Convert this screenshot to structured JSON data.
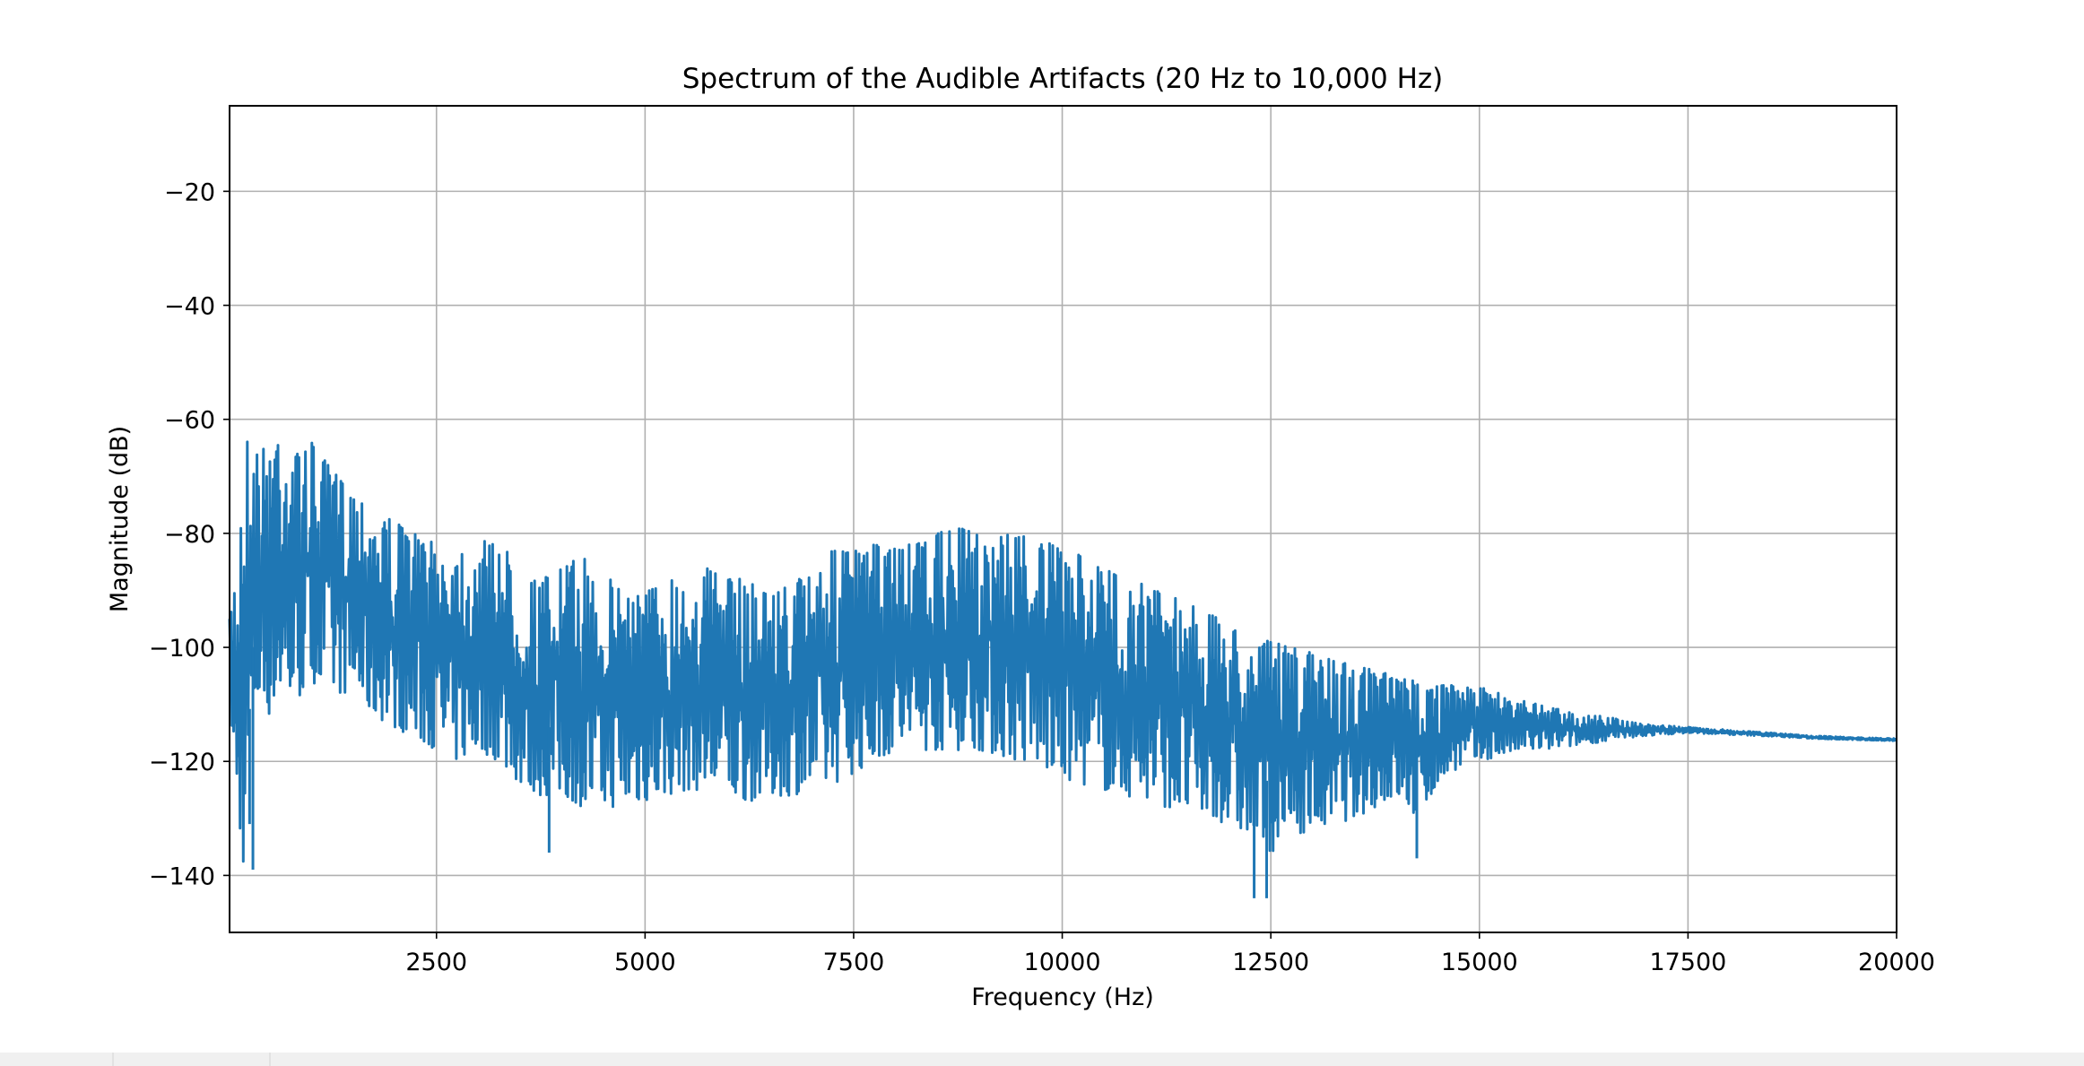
{
  "chart_data": {
    "type": "line",
    "title": "Spectrum of the Audible Artifacts (20 Hz to 10,000 Hz)",
    "xlabel": "Frequency (Hz)",
    "ylabel": "Magnitude (dB)",
    "xlim": [
      20,
      20000
    ],
    "ylim": [
      -150,
      -5
    ],
    "xticks": [
      2500,
      5000,
      7500,
      10000,
      12500,
      15000,
      17500,
      20000
    ],
    "xtick_labels": [
      "2500",
      "5000",
      "7500",
      "10000",
      "12500",
      "15000",
      "17500",
      "20000"
    ],
    "yticks": [
      -20,
      -40,
      -60,
      -80,
      -100,
      -120,
      -140
    ],
    "ytick_labels": [
      "−20",
      "−40",
      "−60",
      "−80",
      "−100",
      "−120",
      "−140"
    ],
    "grid": true,
    "legend": "none",
    "line_color": "#1f77b4",
    "series": [
      {
        "x": [
          20,
          100,
          200,
          300,
          400,
          500,
          600,
          800,
          1000,
          1250,
          1500,
          1750,
          2000,
          2250,
          2500,
          2750,
          3000,
          3250,
          3500,
          3750,
          4000,
          4250,
          4500,
          4750,
          5000,
          5250,
          5500,
          5750,
          6000,
          6250,
          6500,
          6750,
          7000,
          7250,
          7500,
          7750,
          8000,
          8250,
          8500,
          8750,
          9000,
          9250,
          9500,
          9750,
          10000,
          10250,
          10500,
          10750,
          11000,
          11250,
          11500,
          11750,
          12000,
          12250,
          12500,
          12750,
          13000,
          13250,
          13500,
          13750,
          14000,
          14250,
          14500,
          14750,
          15000,
          15250,
          15500,
          15750,
          16000,
          16250,
          16500,
          16750,
          17000,
          17500,
          18000,
          18500,
          19000,
          19500,
          20000
        ],
        "upper": [
          -95,
          -84,
          -62,
          -64,
          -66,
          -62,
          -60,
          -66,
          -64,
          -69,
          -72,
          -75,
          -78,
          -80,
          -82,
          -82,
          -82,
          -80,
          -88,
          -88,
          -86,
          -84,
          -88,
          -88,
          -90,
          -88,
          -87,
          -86,
          -88,
          -88,
          -90,
          -89,
          -86,
          -83,
          -83,
          -82,
          -82,
          -82,
          -80,
          -79,
          -80,
          -80,
          -80,
          -81,
          -83,
          -84,
          -86,
          -88,
          -89,
          -90,
          -92,
          -94,
          -96,
          -98,
          -99,
          -100,
          -101,
          -102,
          -103,
          -104,
          -105,
          -106,
          -106,
          -107,
          -107,
          -108,
          -109,
          -110,
          -111,
          -112,
          -112,
          -113,
          -113.5,
          -114,
          -114.5,
          -115,
          -115.5,
          -115.8,
          -116
        ],
        "lower": [
          -105,
          -132,
          -139,
          -112,
          -110,
          -112,
          -108,
          -110,
          -106,
          -108,
          -108,
          -112,
          -114,
          -116,
          -118,
          -120,
          -118,
          -120,
          -124,
          -126,
          -126,
          -128,
          -128,
          -128,
          -127,
          -126,
          -125,
          -125,
          -126,
          -127,
          -126,
          -126,
          -125,
          -124,
          -122,
          -120,
          -118,
          -118,
          -118,
          -118,
          -118,
          -119,
          -120,
          -121,
          -123,
          -124,
          -125,
          -126,
          -127,
          -128,
          -129,
          -130,
          -131,
          -133,
          -136,
          -133,
          -132,
          -131,
          -130,
          -128,
          -126,
          -130,
          -124,
          -121,
          -120,
          -119,
          -118,
          -118,
          -117.5,
          -117,
          -116.5,
          -116,
          -115.5,
          -115,
          -115.3,
          -115.6,
          -116,
          -116.2,
          -116.4
        ],
        "dips": [
          [
            260,
            -131
          ],
          [
            300,
            -139
          ],
          [
            3850,
            -136
          ],
          [
            12300,
            -144
          ],
          [
            12450,
            -144
          ],
          [
            14250,
            -137
          ]
        ]
      }
    ]
  }
}
